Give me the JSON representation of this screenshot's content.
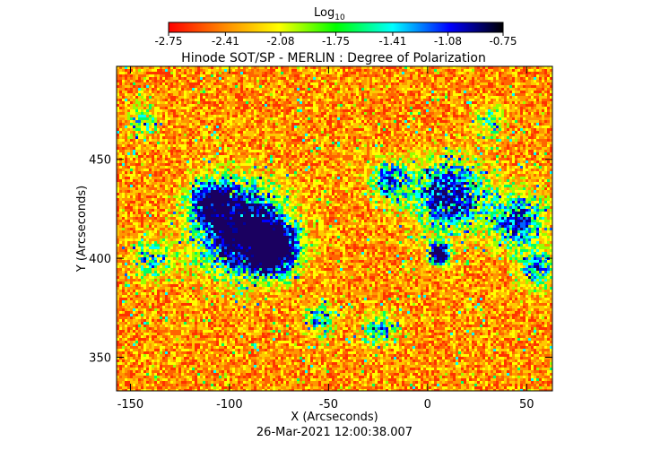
{
  "colorbar": {
    "title_main": "Log",
    "title_sub": "10",
    "ticks": [
      "-2.75",
      "-2.41",
      "-2.08",
      "-1.75",
      "-1.41",
      "-1.08",
      "-0.75"
    ],
    "range": [
      -2.75,
      -0.75
    ],
    "colormap": [
      "#ff0000",
      "#ff8c00",
      "#ffff00",
      "#00ff00",
      "#00ffff",
      "#0000ff",
      "#000000"
    ]
  },
  "chart_data": {
    "type": "heatmap",
    "title": "Hinode SOT/SP - MERLIN : Degree of Polarization",
    "xlabel": "X (Arcseconds)",
    "ylabel": "Y (Arcseconds)",
    "xlim": [
      -157,
      63
    ],
    "ylim": [
      333,
      497
    ],
    "xticks": [
      -150,
      -100,
      -50,
      0,
      50
    ],
    "yticks": [
      350,
      400,
      450
    ],
    "value_range": [
      -2.75,
      -0.75
    ],
    "value_label": "Log10",
    "footer": "26-Mar-2021 12:00:38.007",
    "features": [
      {
        "name": "strong-polarization-patch-west",
        "x": -95,
        "y": 415,
        "value": -1.1
      },
      {
        "name": "strong-polarization-patch-center",
        "x": 5,
        "y": 403,
        "value": -0.8
      },
      {
        "name": "strong-polarization-patch-northeast",
        "x": 10,
        "y": 430,
        "value": -1.2
      }
    ]
  }
}
